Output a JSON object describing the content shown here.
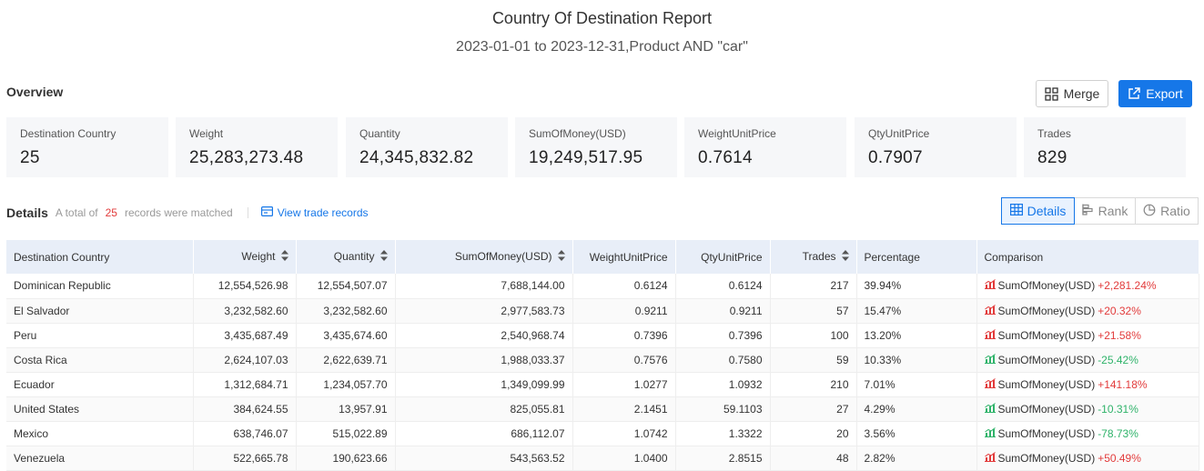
{
  "report": {
    "title": "Country Of Destination Report",
    "subtitle": "2023-01-01 to 2023-12-31,Product AND \"car\""
  },
  "overview": {
    "label": "Overview",
    "merge_label": "Merge",
    "export_label": "Export",
    "cards": [
      {
        "label": "Destination Country",
        "value": "25"
      },
      {
        "label": "Weight",
        "value": "25,283,273.48"
      },
      {
        "label": "Quantity",
        "value": "24,345,832.82"
      },
      {
        "label": "SumOfMoney(USD)",
        "value": "19,249,517.95"
      },
      {
        "label": "WeightUnitPrice",
        "value": "0.7614"
      },
      {
        "label": "QtyUnitPrice",
        "value": "0.7907"
      },
      {
        "label": "Trades",
        "value": "829"
      }
    ]
  },
  "details": {
    "title": "Details",
    "note_prefix": "A total of",
    "count": "25",
    "note_suffix": "records were matched",
    "view_link": "View trade records",
    "tabs": [
      {
        "label": "Details",
        "active": true,
        "icon": "table-icon"
      },
      {
        "label": "Rank",
        "active": false,
        "icon": "rank-bars-icon"
      },
      {
        "label": "Ratio",
        "active": false,
        "icon": "pie-icon"
      }
    ]
  },
  "table": {
    "headers": [
      "Destination Country",
      "Weight",
      "Quantity",
      "SumOfMoney(USD)",
      "WeightUnitPrice",
      "QtyUnitPrice",
      "Trades",
      "Percentage",
      "Comparison"
    ],
    "rows": [
      {
        "country": "Dominican Republic",
        "weight": "12,554,526.98",
        "quantity": "12,554,507.07",
        "money": "7,688,144.00",
        "wup": "0.6124",
        "qup": "0.6124",
        "trades": "217",
        "pct": "39.94%",
        "cmp_label": "SumOfMoney(USD)",
        "cmp_change": "+2,281.24%",
        "trend": "up"
      },
      {
        "country": "El Salvador",
        "weight": "3,232,582.60",
        "quantity": "3,232,582.60",
        "money": "2,977,583.73",
        "wup": "0.9211",
        "qup": "0.9211",
        "trades": "57",
        "pct": "15.47%",
        "cmp_label": "SumOfMoney(USD)",
        "cmp_change": "+20.32%",
        "trend": "up"
      },
      {
        "country": "Peru",
        "weight": "3,435,687.49",
        "quantity": "3,435,674.60",
        "money": "2,540,968.74",
        "wup": "0.7396",
        "qup": "0.7396",
        "trades": "100",
        "pct": "13.20%",
        "cmp_label": "SumOfMoney(USD)",
        "cmp_change": "+21.58%",
        "trend": "up"
      },
      {
        "country": "Costa Rica",
        "weight": "2,624,107.03",
        "quantity": "2,622,639.71",
        "money": "1,988,033.37",
        "wup": "0.7576",
        "qup": "0.7580",
        "trades": "59",
        "pct": "10.33%",
        "cmp_label": "SumOfMoney(USD)",
        "cmp_change": "-25.42%",
        "trend": "down"
      },
      {
        "country": "Ecuador",
        "weight": "1,312,684.71",
        "quantity": "1,234,057.70",
        "money": "1,349,099.99",
        "wup": "1.0277",
        "qup": "1.0932",
        "trades": "210",
        "pct": "7.01%",
        "cmp_label": "SumOfMoney(USD)",
        "cmp_change": "+141.18%",
        "trend": "up"
      },
      {
        "country": "United States",
        "weight": "384,624.55",
        "quantity": "13,957.91",
        "money": "825,055.81",
        "wup": "2.1451",
        "qup": "59.1103",
        "trades": "27",
        "pct": "4.29%",
        "cmp_label": "SumOfMoney(USD)",
        "cmp_change": "-10.31%",
        "trend": "down"
      },
      {
        "country": "Mexico",
        "weight": "638,746.07",
        "quantity": "515,022.89",
        "money": "686,112.07",
        "wup": "1.0742",
        "qup": "1.3322",
        "trades": "20",
        "pct": "3.56%",
        "cmp_label": "SumOfMoney(USD)",
        "cmp_change": "-78.73%",
        "trend": "down"
      },
      {
        "country": "Venezuela",
        "weight": "522,665.78",
        "quantity": "190,623.66",
        "money": "543,563.52",
        "wup": "1.0400",
        "qup": "2.8515",
        "trades": "48",
        "pct": "2.82%",
        "cmp_label": "SumOfMoney(USD)",
        "cmp_change": "+50.49%",
        "trend": "up"
      }
    ]
  },
  "colors": {
    "accent": "#1677e8",
    "up": "#e23b3b",
    "down": "#2fb36a",
    "header_bg": "#e8eef8",
    "card_bg": "#f6f7f9"
  }
}
